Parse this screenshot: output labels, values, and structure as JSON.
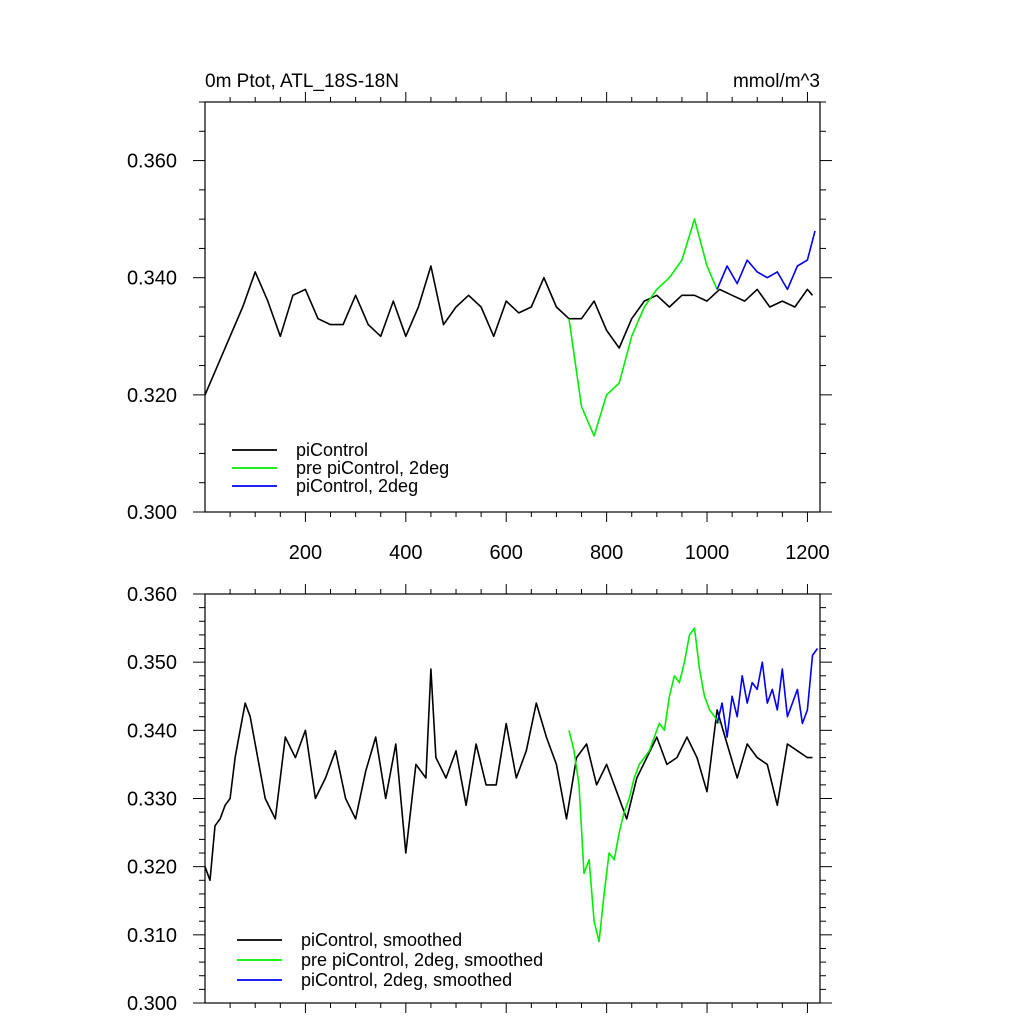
{
  "colors": {
    "piControl": "#000000",
    "pre_piControl_2deg": "#00ee00",
    "piControl_2deg": "#0000ee"
  },
  "chart_data": [
    {
      "type": "line",
      "title": "0m Ptot, ATL_18S-18N",
      "units": "mmol/m^3",
      "xlim": [
        0,
        1225
      ],
      "ylim": [
        0.3,
        0.37
      ],
      "xticks": [
        200,
        400,
        600,
        800,
        1000,
        1200
      ],
      "xtick_labels": [
        "200",
        "400",
        "600",
        "800",
        "1000",
        "1200"
      ],
      "yticks": [
        0.3,
        0.32,
        0.34,
        0.36
      ],
      "ytick_labels": [
        "0.300",
        "0.320",
        "0.340",
        "0.360"
      ],
      "legend_position": "bottom-left",
      "series": [
        {
          "name": "piControl",
          "color": "#000000",
          "x": [
            0,
            25,
            50,
            75,
            100,
            125,
            150,
            175,
            200,
            225,
            250,
            275,
            300,
            325,
            350,
            375,
            400,
            425,
            450,
            475,
            500,
            525,
            550,
            575,
            600,
            625,
            650,
            675,
            700,
            725,
            750,
            775,
            800,
            825,
            850,
            875,
            900,
            925,
            950,
            975,
            1000,
            1025,
            1050,
            1075,
            1100,
            1125,
            1150,
            1175,
            1200,
            1210
          ],
          "y": [
            0.32,
            0.325,
            0.33,
            0.335,
            0.341,
            0.336,
            0.33,
            0.337,
            0.338,
            0.333,
            0.332,
            0.332,
            0.337,
            0.332,
            0.33,
            0.336,
            0.33,
            0.335,
            0.342,
            0.332,
            0.335,
            0.337,
            0.335,
            0.33,
            0.336,
            0.334,
            0.335,
            0.34,
            0.335,
            0.333,
            0.333,
            0.336,
            0.331,
            0.328,
            0.333,
            0.336,
            0.337,
            0.335,
            0.337,
            0.337,
            0.336,
            0.338,
            0.337,
            0.336,
            0.338,
            0.335,
            0.336,
            0.335,
            0.338,
            0.337
          ]
        },
        {
          "name": "pre piControl, 2deg",
          "color": "#00ee00",
          "x": [
            725,
            750,
            775,
            800,
            825,
            850,
            875,
            900,
            925,
            950,
            975,
            1000,
            1020
          ],
          "y": [
            0.333,
            0.318,
            0.313,
            0.32,
            0.322,
            0.33,
            0.335,
            0.338,
            0.34,
            0.343,
            0.35,
            0.342,
            0.338
          ]
        },
        {
          "name": "piControl, 2deg",
          "color": "#0000ee",
          "x": [
            1020,
            1040,
            1060,
            1080,
            1100,
            1120,
            1140,
            1160,
            1180,
            1200,
            1215
          ],
          "y": [
            0.338,
            0.342,
            0.339,
            0.343,
            0.341,
            0.34,
            0.341,
            0.338,
            0.342,
            0.343,
            0.348
          ]
        }
      ]
    },
    {
      "type": "line",
      "xlim": [
        0,
        1225
      ],
      "ylim": [
        0.3,
        0.36
      ],
      "xticks": [
        200,
        400,
        600,
        800,
        1000,
        1200
      ],
      "yticks": [
        0.3,
        0.31,
        0.32,
        0.33,
        0.34,
        0.35,
        0.36
      ],
      "ytick_labels": [
        "0.300",
        "0.310",
        "0.320",
        "0.330",
        "0.340",
        "0.350",
        "0.360"
      ],
      "legend_position": "bottom-left",
      "series": [
        {
          "name": "piControl, smoothed",
          "color": "#000000",
          "x": [
            0,
            10,
            20,
            30,
            40,
            50,
            60,
            70,
            80,
            90,
            100,
            120,
            140,
            160,
            180,
            200,
            220,
            240,
            260,
            280,
            300,
            320,
            340,
            360,
            380,
            400,
            420,
            440,
            450,
            460,
            480,
            500,
            520,
            540,
            560,
            580,
            600,
            620,
            640,
            660,
            680,
            700,
            720,
            740,
            760,
            780,
            800,
            820,
            840,
            860,
            880,
            900,
            920,
            940,
            960,
            980,
            1000,
            1020,
            1040,
            1060,
            1080,
            1100,
            1120,
            1140,
            1160,
            1180,
            1200,
            1210
          ],
          "y": [
            0.32,
            0.318,
            0.326,
            0.327,
            0.329,
            0.33,
            0.336,
            0.34,
            0.344,
            0.342,
            0.338,
            0.33,
            0.327,
            0.339,
            0.336,
            0.34,
            0.33,
            0.333,
            0.337,
            0.33,
            0.327,
            0.334,
            0.339,
            0.33,
            0.338,
            0.322,
            0.335,
            0.333,
            0.349,
            0.336,
            0.333,
            0.337,
            0.329,
            0.338,
            0.332,
            0.332,
            0.341,
            0.333,
            0.337,
            0.344,
            0.339,
            0.335,
            0.327,
            0.336,
            0.338,
            0.332,
            0.335,
            0.331,
            0.327,
            0.333,
            0.336,
            0.339,
            0.335,
            0.336,
            0.339,
            0.336,
            0.331,
            0.343,
            0.338,
            0.333,
            0.338,
            0.336,
            0.335,
            0.329,
            0.338,
            0.337,
            0.336,
            0.336
          ]
        },
        {
          "name": "pre piControl, 2deg, smoothed",
          "color": "#00ee00",
          "x": [
            725,
            735,
            745,
            755,
            765,
            775,
            785,
            795,
            805,
            815,
            825,
            835,
            845,
            855,
            865,
            875,
            885,
            895,
            905,
            915,
            925,
            935,
            945,
            955,
            965,
            975,
            985,
            995,
            1005,
            1015,
            1025
          ],
          "y": [
            0.34,
            0.337,
            0.332,
            0.319,
            0.321,
            0.312,
            0.309,
            0.316,
            0.322,
            0.321,
            0.325,
            0.328,
            0.33,
            0.333,
            0.335,
            0.336,
            0.337,
            0.339,
            0.341,
            0.34,
            0.345,
            0.348,
            0.347,
            0.35,
            0.354,
            0.355,
            0.349,
            0.345,
            0.343,
            0.342,
            0.341
          ]
        },
        {
          "name": "piControl, 2deg, smoothed",
          "color": "#0000ee",
          "x": [
            1020,
            1030,
            1040,
            1050,
            1060,
            1070,
            1080,
            1090,
            1100,
            1110,
            1120,
            1130,
            1140,
            1150,
            1160,
            1170,
            1180,
            1190,
            1200,
            1210,
            1220
          ],
          "y": [
            0.341,
            0.344,
            0.339,
            0.345,
            0.342,
            0.348,
            0.344,
            0.347,
            0.346,
            0.35,
            0.344,
            0.346,
            0.343,
            0.349,
            0.342,
            0.344,
            0.346,
            0.341,
            0.343,
            0.351,
            0.352
          ]
        }
      ]
    }
  ]
}
